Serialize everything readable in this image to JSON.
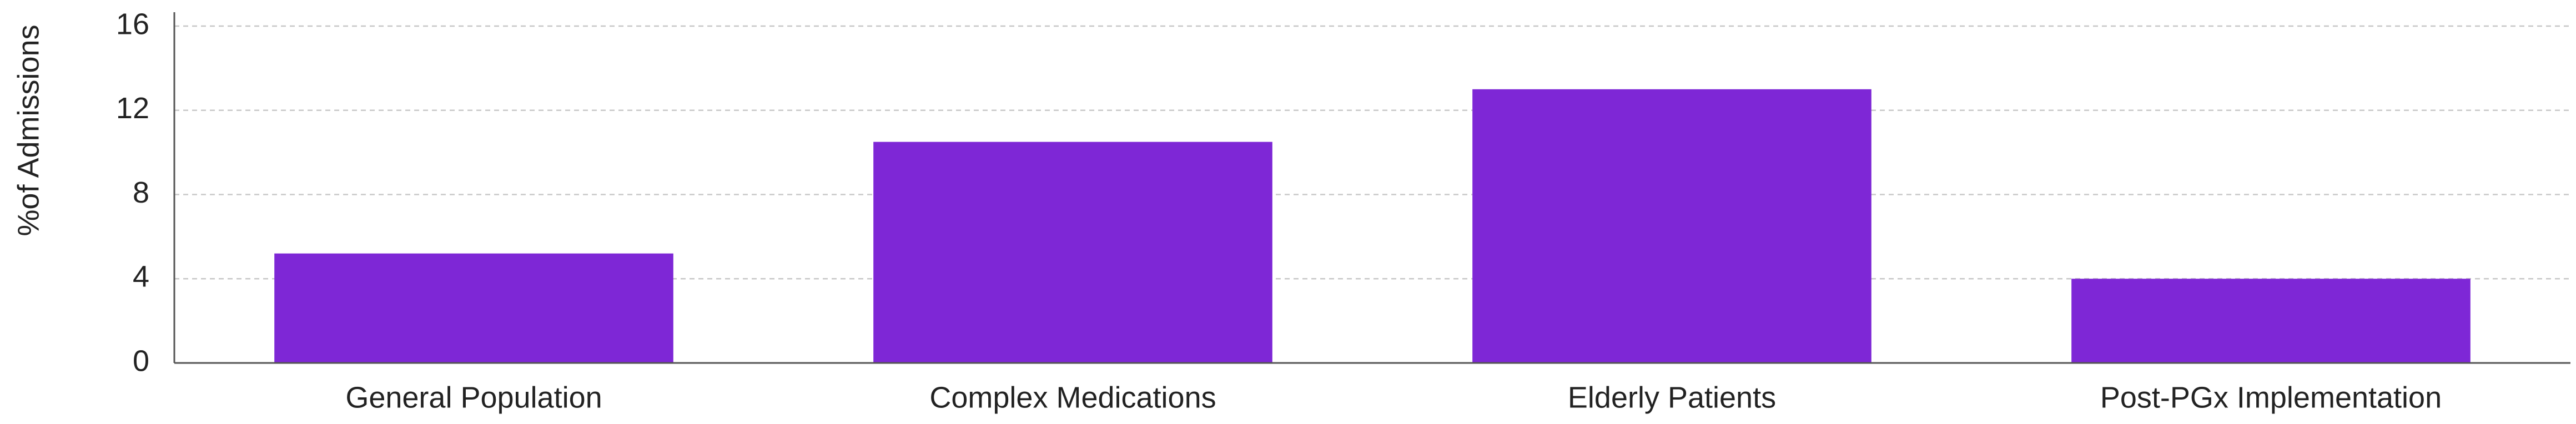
{
  "chart_data": {
    "type": "bar",
    "y_label": "%of Admissions",
    "categories": [
      "General Population",
      "Complex Medications",
      "Elderly Patients",
      "Post-PGx Implementation"
    ],
    "values": [
      5.2,
      10.5,
      13.0,
      4.0
    ],
    "color": "#7e27d6",
    "ylim": [
      0,
      16
    ],
    "yticks": [
      0,
      4,
      8,
      12,
      16
    ],
    "grid": true
  }
}
